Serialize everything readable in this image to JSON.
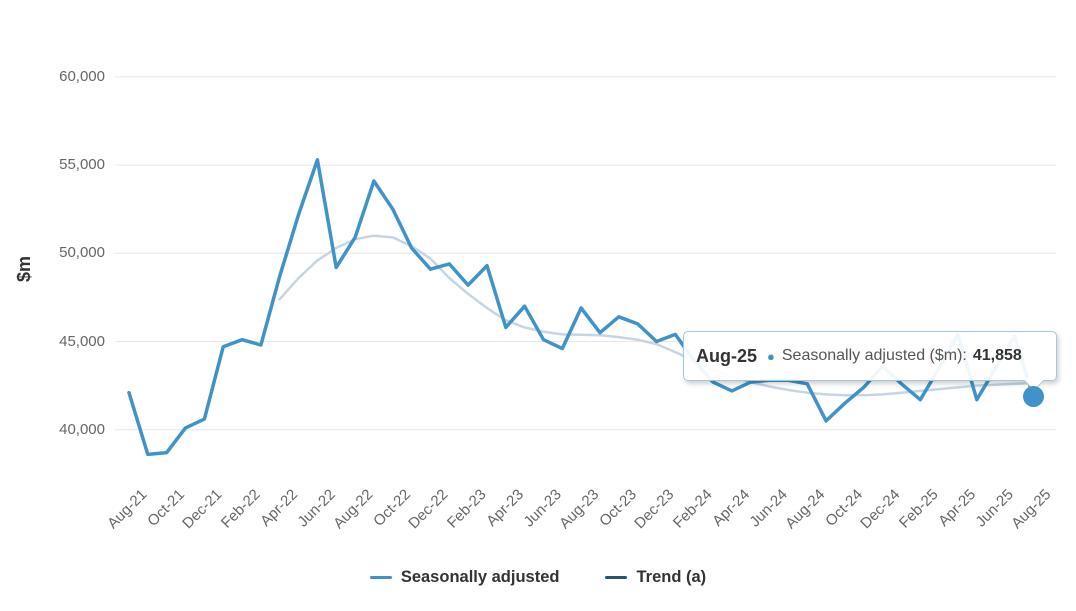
{
  "chart": {
    "y_axis": {
      "title": "$m",
      "tick_labels": [
        "60,000",
        "55,000",
        "50,000",
        "45,000",
        "40,000"
      ],
      "tick_values": [
        60000,
        55000,
        50000,
        45000,
        40000
      ]
    },
    "x_axis": {
      "tick_every": 2
    },
    "tooltip": {
      "date": "Aug-25",
      "marker": "●",
      "series_label": "Seasonally adjusted ($m):",
      "value": "41,858"
    },
    "colors": {
      "seasonally_adjusted": "#3F93C8",
      "trend_line": "#C6D5E4",
      "trend_legend": "#2A566D",
      "gridline": "#E7E7E7",
      "axis_text": "#666666",
      "tooltip_border": "#A3C7DE"
    }
  },
  "chart_data": {
    "type": "line",
    "title": "",
    "xlabel": "",
    "ylabel": "$m",
    "ylim": [
      37500,
      62000
    ],
    "grid": "horizontal",
    "legend_position": "bottom",
    "x": [
      "Aug-21",
      "Sep-21",
      "Oct-21",
      "Nov-21",
      "Dec-21",
      "Jan-22",
      "Feb-22",
      "Mar-22",
      "Apr-22",
      "May-22",
      "Jun-22",
      "Jul-22",
      "Aug-22",
      "Sep-22",
      "Oct-22",
      "Nov-22",
      "Dec-22",
      "Jan-23",
      "Feb-23",
      "Mar-23",
      "Apr-23",
      "May-23",
      "Jun-23",
      "Jul-23",
      "Aug-23",
      "Sep-23",
      "Oct-23",
      "Nov-23",
      "Dec-23",
      "Jan-24",
      "Feb-24",
      "Mar-24",
      "Apr-24",
      "May-24",
      "Jun-24",
      "Jul-24",
      "Aug-24",
      "Sep-24",
      "Oct-24",
      "Nov-24",
      "Dec-24",
      "Jan-25",
      "Feb-25",
      "Mar-25",
      "Apr-25",
      "May-25",
      "Jun-25",
      "Jul-25",
      "Aug-25"
    ],
    "series": [
      {
        "name": "Seasonally adjusted",
        "color": "#3F93C8",
        "values": [
          42100,
          38600,
          38700,
          40100,
          40600,
          44700,
          45100,
          44800,
          48700,
          52200,
          55300,
          49200,
          50900,
          54100,
          52500,
          50300,
          49100,
          49400,
          48200,
          49300,
          45800,
          47000,
          45100,
          44600,
          46900,
          45500,
          46400,
          46000,
          45000,
          45400,
          43900,
          42700,
          42200,
          42700,
          42800,
          42800,
          42600,
          40500,
          41500,
          42400,
          43600,
          42600,
          41700,
          43500,
          45400,
          41700,
          43500,
          45300,
          41858
        ]
      },
      {
        "name": "Trend (a)",
        "color": "#C6D5E4",
        "legend_color": "#2A566D",
        "values": [
          null,
          null,
          null,
          null,
          null,
          null,
          null,
          null,
          47400,
          48600,
          49600,
          50300,
          50800,
          51000,
          50900,
          50400,
          49700,
          48600,
          47700,
          46900,
          46200,
          45800,
          45550,
          45400,
          45380,
          45350,
          45250,
          45100,
          44850,
          44400,
          43900,
          43400,
          43000,
          42700,
          42450,
          42250,
          42100,
          42000,
          41950,
          41950,
          42000,
          42100,
          42200,
          42300,
          42400,
          42500,
          42550,
          42600,
          42650
        ]
      }
    ],
    "highlight": {
      "x": "Aug-25",
      "series": "Seasonally adjusted",
      "value": 41858
    }
  }
}
